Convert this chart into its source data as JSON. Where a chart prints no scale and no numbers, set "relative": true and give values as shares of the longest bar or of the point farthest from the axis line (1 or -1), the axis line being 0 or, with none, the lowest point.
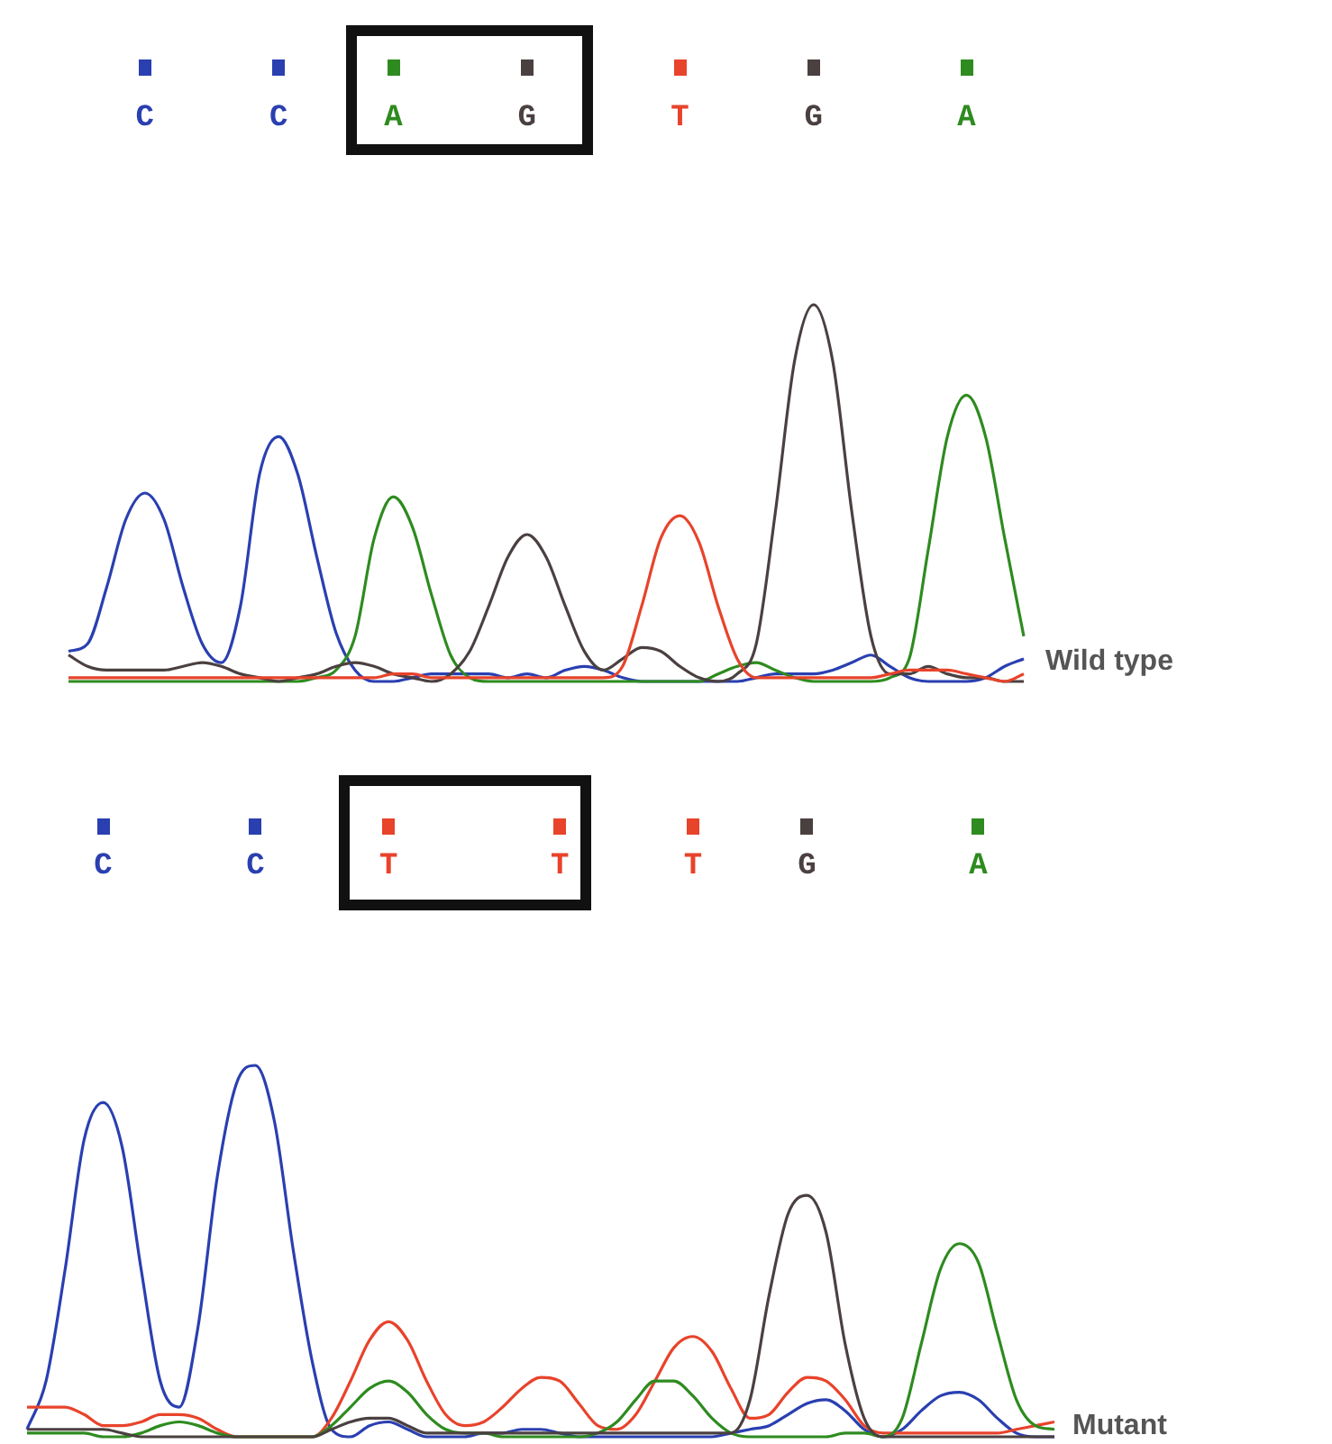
{
  "chart_data": [
    {
      "type": "line",
      "title": "Wild type",
      "relative": true,
      "tick_labels": "x",
      "grid": false,
      "marker": "none",
      "line_style": "solid",
      "categories": [
        null,
        null,
        null,
        null,
        "C",
        null,
        null,
        null,
        null,
        null,
        null,
        "C",
        null,
        null,
        null,
        null,
        null,
        "A",
        null,
        null,
        null,
        null,
        null,
        null,
        "G",
        null,
        null,
        null,
        null,
        null,
        null,
        null,
        "T",
        null,
        null,
        null,
        null,
        null,
        null,
        "G",
        null,
        null,
        null,
        null,
        null,
        null,
        null,
        "A",
        null,
        null,
        null
      ],
      "series": [
        {
          "color": "#2a3fb0",
          "values": [
            0.08,
            0.1,
            0.25,
            0.43,
            0.5,
            0.43,
            0.25,
            0.1,
            0.05,
            0.2,
            0.55,
            0.65,
            0.55,
            0.33,
            0.13,
            0.03,
            0,
            0,
            0.01,
            0.02,
            0.02,
            0.02,
            0.02,
            0.01,
            0.02,
            0.01,
            0.03,
            0.04,
            0.03,
            0.01,
            0,
            0,
            0,
            0,
            0,
            0,
            0.01,
            0.02,
            0.02,
            0.02,
            0.03,
            0.05,
            0.07,
            0.04,
            0.01,
            0,
            0,
            0,
            0.01,
            0.04,
            0.06
          ]
        },
        {
          "color": "#2e8b1f",
          "values": [
            0,
            0,
            0,
            0,
            0,
            0,
            0,
            0,
            0,
            0,
            0,
            0,
            0,
            0.01,
            0.03,
            0.12,
            0.38,
            0.49,
            0.41,
            0.23,
            0.07,
            0.01,
            0,
            0,
            0,
            0,
            0,
            0,
            0,
            0,
            0,
            0,
            0,
            0,
            0.02,
            0.04,
            0.05,
            0.03,
            0.01,
            0,
            0,
            0,
            0,
            0.01,
            0.06,
            0.35,
            0.65,
            0.76,
            0.65,
            0.38,
            0.12
          ]
        },
        {
          "color": "#4b4040",
          "values": [
            0.07,
            0.04,
            0.03,
            0.03,
            0.03,
            0.03,
            0.04,
            0.05,
            0.04,
            0.02,
            0.01,
            0,
            0.01,
            0.02,
            0.04,
            0.05,
            0.04,
            0.02,
            0.01,
            0,
            0.02,
            0.08,
            0.2,
            0.33,
            0.39,
            0.33,
            0.2,
            0.08,
            0.03,
            0.06,
            0.09,
            0.08,
            0.04,
            0.01,
            0,
            0.02,
            0.1,
            0.45,
            0.85,
            1,
            0.85,
            0.45,
            0.12,
            0.02,
            0.02,
            0.04,
            0.02,
            0.01,
            0.01,
            0,
            0
          ]
        },
        {
          "color": "#e8432b",
          "values": [
            0.01,
            0.01,
            0.01,
            0.01,
            0.01,
            0.01,
            0.01,
            0.01,
            0.01,
            0.01,
            0.01,
            0.01,
            0.01,
            0.01,
            0.01,
            0.01,
            0.01,
            0.02,
            0.02,
            0.01,
            0.01,
            0.01,
            0.01,
            0.01,
            0.01,
            0.01,
            0.01,
            0.01,
            0.01,
            0.04,
            0.2,
            0.38,
            0.44,
            0.37,
            0.2,
            0.06,
            0.01,
            0.01,
            0.01,
            0.01,
            0.01,
            0.01,
            0.01,
            0.02,
            0.03,
            0.03,
            0.03,
            0.02,
            0.01,
            0,
            0.02
          ]
        }
      ]
    },
    {
      "type": "line",
      "title": "Mutant",
      "relative": true,
      "tick_labels": "x",
      "grid": false,
      "marker": "none",
      "line_style": "solid",
      "categories": [
        null,
        null,
        null,
        null,
        "C",
        null,
        null,
        null,
        null,
        null,
        null,
        null,
        "C",
        null,
        null,
        null,
        null,
        null,
        null,
        "T",
        null,
        null,
        null,
        null,
        null,
        null,
        null,
        null,
        "T",
        null,
        null,
        null,
        null,
        null,
        null,
        "T",
        null,
        null,
        null,
        null,
        null,
        "G",
        null,
        null,
        null,
        null,
        null,
        null,
        null,
        null,
        "A",
        null,
        null,
        null,
        null
      ],
      "series": [
        {
          "color": "#2a3fb0",
          "values": [
            0.02,
            0.15,
            0.45,
            0.8,
            0.9,
            0.78,
            0.45,
            0.15,
            0.08,
            0.3,
            0.7,
            0.95,
            1,
            0.85,
            0.5,
            0.2,
            0.02,
            0,
            0.03,
            0.04,
            0.02,
            0,
            0,
            0,
            0.01,
            0.01,
            0.02,
            0.02,
            0.01,
            0,
            0,
            0,
            0,
            0,
            0,
            0,
            0,
            0.01,
            0.02,
            0.03,
            0.06,
            0.09,
            0.1,
            0.07,
            0.02,
            0,
            0.02,
            0.07,
            0.11,
            0.12,
            0.1,
            0.05,
            0.01,
            0,
            0
          ]
        },
        {
          "color": "#e8432b",
          "values": [
            0.08,
            0.08,
            0.08,
            0.06,
            0.03,
            0.03,
            0.04,
            0.06,
            0.06,
            0.05,
            0.02,
            0,
            0,
            0,
            0,
            0,
            0.05,
            0.15,
            0.26,
            0.31,
            0.26,
            0.15,
            0.06,
            0.03,
            0.04,
            0.08,
            0.13,
            0.16,
            0.15,
            0.09,
            0.03,
            0.02,
            0.06,
            0.15,
            0.24,
            0.27,
            0.23,
            0.13,
            0.05,
            0.06,
            0.12,
            0.16,
            0.15,
            0.1,
            0.03,
            0.01,
            0.01,
            0.01,
            0.01,
            0.01,
            0.01,
            0.01,
            0.02,
            0.03,
            0.04
          ]
        },
        {
          "color": "#2e8b1f",
          "values": [
            0.01,
            0.01,
            0.01,
            0.01,
            0,
            0,
            0.01,
            0.03,
            0.04,
            0.03,
            0.01,
            0,
            0,
            0,
            0,
            0,
            0.03,
            0.08,
            0.13,
            0.15,
            0.12,
            0.06,
            0.02,
            0.01,
            0.01,
            0,
            0,
            0,
            0,
            0,
            0.01,
            0.04,
            0.1,
            0.15,
            0.15,
            0.11,
            0.05,
            0.01,
            0,
            0,
            0,
            0,
            0,
            0.01,
            0.01,
            0,
            0.05,
            0.25,
            0.45,
            0.52,
            0.47,
            0.28,
            0.1,
            0.03,
            0.02
          ]
        },
        {
          "color": "#4b4040",
          "values": [
            0.02,
            0.02,
            0.02,
            0.02,
            0.02,
            0.01,
            0,
            0,
            0,
            0,
            0,
            0,
            0,
            0,
            0,
            0,
            0.02,
            0.04,
            0.05,
            0.05,
            0.03,
            0.01,
            0.01,
            0.01,
            0.01,
            0.01,
            0.01,
            0.01,
            0.01,
            0.01,
            0.01,
            0.01,
            0.01,
            0.01,
            0.01,
            0.01,
            0.01,
            0.01,
            0.1,
            0.38,
            0.6,
            0.65,
            0.55,
            0.25,
            0.05,
            0,
            0,
            0,
            0,
            0,
            0,
            0,
            0,
            0,
            0
          ]
        }
      ]
    }
  ]
}
